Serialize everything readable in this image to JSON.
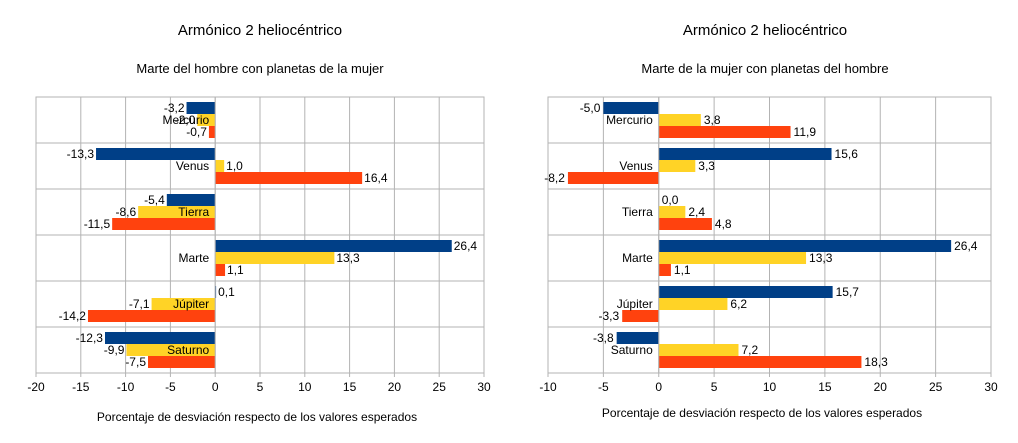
{
  "colors": {
    "series1": "#003f87",
    "series2": "#ffd326",
    "series3": "#ff420e",
    "grid": "#b3b3b3"
  },
  "chart_data": [
    {
      "type": "bar",
      "orientation": "horizontal",
      "title": "Armónico 2 heliocéntrico",
      "subtitle": "Marte del hombre con planetas de la mujer",
      "xlabel": "Porcentaje de desviación respecto de los valores esperados",
      "ylabel": "",
      "xlim": [
        -20,
        30
      ],
      "xticks": [
        "-20",
        "-15",
        "-10",
        "-5",
        "0",
        "5",
        "10",
        "15",
        "20",
        "25",
        "30"
      ],
      "grid": true,
      "legend": "none",
      "categories": [
        "Mercurio",
        "Venus",
        "Tierra",
        "Marte",
        "Júpiter",
        "Saturno"
      ],
      "series": [
        {
          "values": [
            -3.2,
            -13.3,
            -5.4,
            26.4,
            0.1,
            -12.3
          ],
          "labels": [
            "-3,2",
            "-13,3",
            "-5,4",
            "26,4",
            "0,1",
            "-12,3"
          ]
        },
        {
          "values": [
            -2.0,
            1.0,
            -8.6,
            13.3,
            -7.1,
            -9.9
          ],
          "labels": [
            "-2,0",
            "1,0",
            "-8,6",
            "13,3",
            "-7,1",
            "-9,9"
          ]
        },
        {
          "values": [
            -0.7,
            16.4,
            -11.5,
            1.1,
            -14.2,
            -7.5
          ],
          "labels": [
            "-0,7",
            "16,4",
            "-11,5",
            "1,1",
            "-14,2",
            "-7,5"
          ]
        }
      ]
    },
    {
      "type": "bar",
      "orientation": "horizontal",
      "title": "Armónico 2 heliocéntrico",
      "subtitle": "Marte de la mujer con planetas del hombre",
      "xlabel": "Porcentaje de desviación respecto de los valores esperados",
      "ylabel": "",
      "xlim": [
        -10,
        30
      ],
      "xticks": [
        "-10",
        "-5",
        "0",
        "5",
        "10",
        "15",
        "20",
        "25",
        "30"
      ],
      "grid": true,
      "legend": "none",
      "categories": [
        "Mercurio",
        "Venus",
        "Tierra",
        "Marte",
        "Júpiter",
        "Saturno"
      ],
      "series": [
        {
          "values": [
            -5.0,
            15.6,
            0.0,
            26.4,
            15.7,
            -3.8
          ],
          "labels": [
            "-5,0",
            "15,6",
            "0,0",
            "26,4",
            "15,7",
            "-3,8"
          ]
        },
        {
          "values": [
            3.8,
            3.3,
            2.4,
            13.3,
            6.2,
            7.2
          ],
          "labels": [
            "3,8",
            "3,3",
            "2,4",
            "13,3",
            "6,2",
            "7,2"
          ]
        },
        {
          "values": [
            11.9,
            -8.2,
            4.8,
            1.1,
            -3.3,
            18.3
          ],
          "labels": [
            "11,9",
            "-8,2",
            "4,8",
            "1,1",
            "-3,3",
            "18,3"
          ]
        }
      ]
    }
  ]
}
